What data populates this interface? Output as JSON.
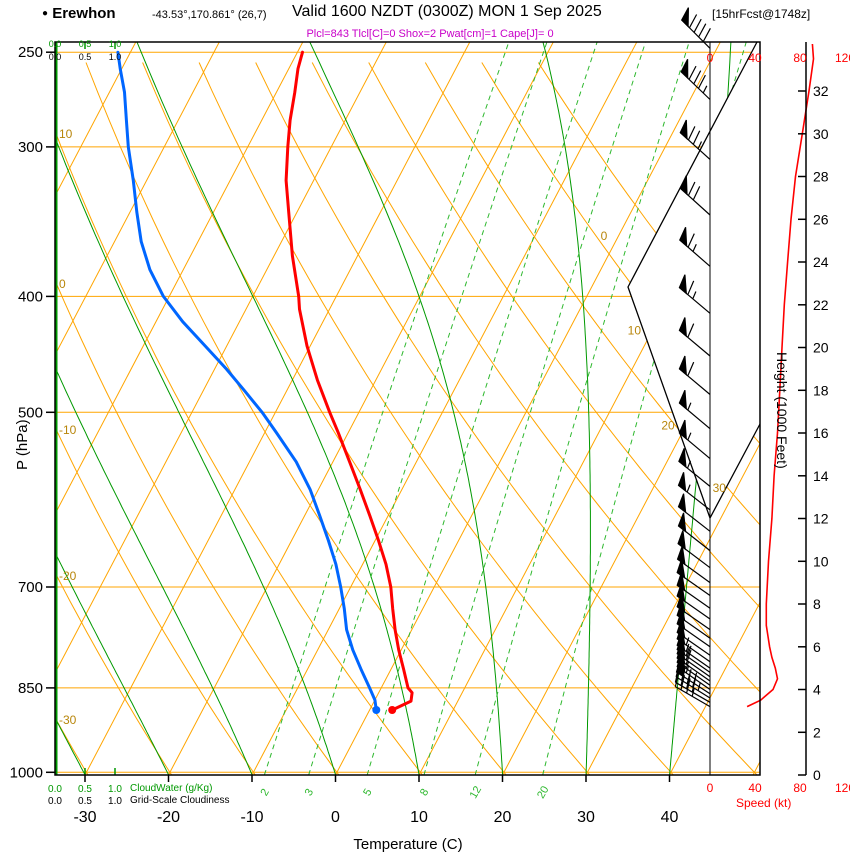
{
  "title": {
    "bullet": "●",
    "station": "Erewhon",
    "coords": "-43.53°,170.861° (26,7)",
    "valid": "Valid 1600 NZDT (0300Z) MON 1 Sep 2025",
    "fcst": "[15hrFcst@1748z]",
    "params": "Plcl=843 Tlcl[C]=0 Shox=2 Pwat[cm]=1 Cape[J]= 0"
  },
  "axes": {
    "pressure": {
      "label": "P (hPa)",
      "ticks": [
        250,
        300,
        400,
        500,
        700,
        850,
        1000
      ]
    },
    "temperature": {
      "label": "Temperature (C)",
      "ticks": [
        -30,
        -20,
        -10,
        0,
        10,
        20,
        30,
        40
      ]
    },
    "height": {
      "label": "Height (1000 Feet)",
      "ticks": [
        0,
        2,
        4,
        6,
        8,
        10,
        12,
        14,
        16,
        18,
        20,
        22,
        24,
        26,
        28,
        30,
        32
      ]
    },
    "speed": {
      "label": "Speed (kt)",
      "ticks": [
        0,
        40,
        80,
        120
      ]
    },
    "cloudwater": {
      "label": "CloudWater (g/Kg)",
      "ticks": [
        "0.0",
        "0.5",
        "1.0"
      ]
    },
    "cloudiness": {
      "label": "Grid-Scale Cloudiness",
      "ticks": [
        "0.0",
        "0.5",
        "1.0"
      ]
    }
  },
  "colors": {
    "grid_orange": "#ffa500",
    "green_solid": "#009900",
    "green_dashed": "#2eb82e",
    "temp_red": "#ff0000",
    "dewpoint_blue": "#0066ff",
    "olive_label": "#b8860b",
    "magenta": "#c800c8",
    "black": "#000000"
  },
  "chart_data": {
    "type": "skewt-logp-sounding",
    "pressure_range_hpa": [
      1005,
      245
    ],
    "temperature_range_c": [
      -33,
      51
    ],
    "height_range_kft": [
      0,
      34.3
    ],
    "speed_range_kt": [
      0,
      120
    ],
    "surface": {
      "pressure_hpa": 887,
      "temp_c": 2.7,
      "dewpoint_c": 0.8
    },
    "temperature_profile": {
      "units": [
        "hPa",
        "C"
      ],
      "points": [
        [
          887,
          2.7
        ],
        [
          872,
          4.4
        ],
        [
          858,
          4.0
        ],
        [
          850,
          3.2
        ],
        [
          820,
          1.5
        ],
        [
          790,
          -0.3
        ],
        [
          760,
          -2.0
        ],
        [
          730,
          -3.6
        ],
        [
          700,
          -5.2
        ],
        [
          670,
          -7.2
        ],
        [
          640,
          -9.6
        ],
        [
          610,
          -12.2
        ],
        [
          580,
          -15.0
        ],
        [
          550,
          -18.0
        ],
        [
          520,
          -21.2
        ],
        [
          500,
          -23.5
        ],
        [
          470,
          -27.0
        ],
        [
          440,
          -30.4
        ],
        [
          410,
          -33.6
        ],
        [
          400,
          -34.5
        ],
        [
          370,
          -37.8
        ],
        [
          340,
          -41.0
        ],
        [
          320,
          -43.3
        ],
        [
          300,
          -45.2
        ],
        [
          285,
          -46.6
        ],
        [
          270,
          -47.8
        ],
        [
          258,
          -48.9
        ],
        [
          250,
          -49.4
        ]
      ]
    },
    "dewpoint_profile": {
      "units": [
        "hPa",
        "C"
      ],
      "points": [
        [
          887,
          0.8
        ],
        [
          870,
          0.0
        ],
        [
          850,
          -1.4
        ],
        [
          820,
          -3.6
        ],
        [
          790,
          -5.8
        ],
        [
          760,
          -7.8
        ],
        [
          730,
          -9.4
        ],
        [
          700,
          -11.2
        ],
        [
          670,
          -13.2
        ],
        [
          640,
          -15.6
        ],
        [
          610,
          -18.2
        ],
        [
          580,
          -21.0
        ],
        [
          550,
          -24.4
        ],
        [
          520,
          -28.6
        ],
        [
          500,
          -31.6
        ],
        [
          480,
          -35.0
        ],
        [
          460,
          -38.6
        ],
        [
          440,
          -42.6
        ],
        [
          420,
          -46.8
        ],
        [
          400,
          -50.7
        ],
        [
          380,
          -54.0
        ],
        [
          360,
          -56.8
        ],
        [
          340,
          -59.2
        ],
        [
          320,
          -61.6
        ],
        [
          300,
          -64.3
        ],
        [
          285,
          -66.2
        ],
        [
          270,
          -68.2
        ],
        [
          258,
          -70.2
        ],
        [
          250,
          -71.5
        ]
      ]
    },
    "wind_speed_profile": {
      "units": [
        "kft",
        "kt"
      ],
      "points": [
        [
          3.2,
          33
        ],
        [
          3.5,
          45
        ],
        [
          4.0,
          56
        ],
        [
          4.5,
          60
        ],
        [
          5.0,
          58
        ],
        [
          5.5,
          55
        ],
        [
          6.0,
          53
        ],
        [
          7,
          50
        ],
        [
          8,
          50
        ],
        [
          9,
          51
        ],
        [
          10,
          52
        ],
        [
          12,
          55
        ],
        [
          14,
          57
        ],
        [
          16,
          60
        ],
        [
          18,
          62
        ],
        [
          20,
          64
        ],
        [
          22,
          66
        ],
        [
          24,
          69
        ],
        [
          26,
          72
        ],
        [
          28,
          76
        ],
        [
          30,
          82
        ],
        [
          32,
          88
        ],
        [
          33.5,
          92
        ],
        [
          34.2,
          91
        ]
      ]
    },
    "wind_barbs": {
      "format": [
        "height_kft",
        "speed_kt",
        "dir_deg"
      ],
      "levels": [
        [
          3.2,
          35,
          300
        ],
        [
          3.4,
          40,
          300
        ],
        [
          3.6,
          45,
          302
        ],
        [
          3.8,
          50,
          303
        ],
        [
          4.0,
          55,
          305
        ],
        [
          4.2,
          58,
          305
        ],
        [
          4.4,
          60,
          305
        ],
        [
          4.6,
          60,
          305
        ],
        [
          4.8,
          58,
          305
        ],
        [
          5.0,
          57,
          305
        ],
        [
          5.3,
          55,
          305
        ],
        [
          5.6,
          53,
          305
        ],
        [
          6.0,
          52,
          305
        ],
        [
          6.4,
          51,
          305
        ],
        [
          6.8,
          50,
          305
        ],
        [
          7.3,
          50,
          305
        ],
        [
          7.8,
          50,
          305
        ],
        [
          8.4,
          50,
          305
        ],
        [
          9.0,
          51,
          306
        ],
        [
          9.7,
          52,
          307
        ],
        [
          10.5,
          53,
          308
        ],
        [
          11.4,
          54,
          308
        ],
        [
          12.4,
          55,
          308
        ],
        [
          13.5,
          56,
          309
        ],
        [
          14.8,
          58,
          310
        ],
        [
          16.2,
          59,
          310
        ],
        [
          17.8,
          61,
          310
        ],
        [
          19.6,
          63,
          310
        ],
        [
          21.6,
          65,
          310
        ],
        [
          23.8,
          68,
          311
        ],
        [
          26.2,
          72,
          312
        ],
        [
          28.8,
          77,
          312
        ],
        [
          31.6,
          85,
          314
        ],
        [
          34.0,
          92,
          315
        ]
      ]
    },
    "cloudwater_profile": {
      "units": "g/kg",
      "constant_value": 0
    },
    "cloudiness_profile": {
      "units": "fraction",
      "constant_value": 0
    },
    "background": {
      "pressure_lines": [
        250,
        300,
        400,
        500,
        700,
        850,
        1000
      ],
      "isotherms": {
        "min": -80,
        "max": 50,
        "step": 10
      },
      "dry_adiabats": {
        "min": -30,
        "max": 100,
        "step": 10
      },
      "moist_adiabats": [
        -30,
        -20,
        -10,
        0,
        10,
        20,
        30,
        40
      ],
      "mixing_ratios": [
        2,
        3,
        5,
        8,
        12,
        20
      ],
      "isotherm_edge_labels": [
        0,
        10,
        20,
        30
      ],
      "dry_adiabat_edge_labels": [
        10,
        0,
        -10,
        -20,
        -30
      ]
    }
  }
}
